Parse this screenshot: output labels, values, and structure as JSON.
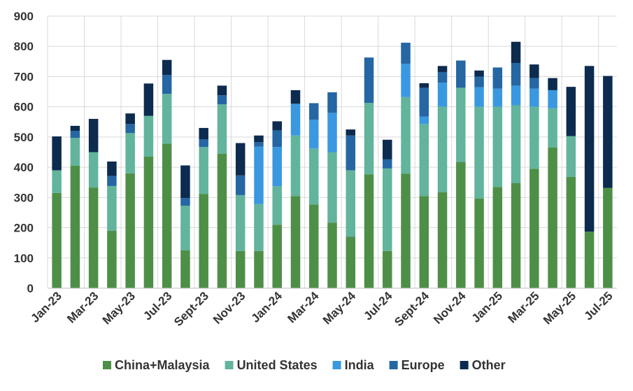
{
  "chart_data": {
    "type": "bar",
    "stacked": true,
    "title": "",
    "xlabel": "",
    "ylabel": "",
    "ylim": [
      0,
      900
    ],
    "yticks": [
      0,
      100,
      200,
      300,
      400,
      500,
      600,
      700,
      800,
      900
    ],
    "grid": true,
    "legend_position": "bottom",
    "categories": [
      "Jan-23",
      "Feb-23",
      "Mar-23",
      "Apr-23",
      "May-23",
      "Jun-23",
      "Jul-23",
      "Aug-23",
      "Sept-23",
      "Oct-23",
      "Nov-23",
      "Dec-23",
      "Jan-24",
      "Feb-24",
      "Mar-24",
      "Apr-24",
      "May-24",
      "Jun-24",
      "Jul-24",
      "Aug-24",
      "Sept-24",
      "Oct-24",
      "Nov-24",
      "Dec-24",
      "Jan-25",
      "Feb-25",
      "Mar-25",
      "Apr-25",
      "May-25",
      "Jun-25",
      "Jul-25"
    ],
    "tick_labels": [
      "Jan-23",
      "Mar-23",
      "May-23",
      "Jul-23",
      "Sept-23",
      "Nov-23",
      "Jan-24",
      "Mar-24",
      "May-24",
      "Jul-24",
      "Sept-24",
      "Nov-24",
      "Jan-25",
      "Mar-25",
      "May-25",
      "Jul-25"
    ],
    "series": [
      {
        "name": "China+Malaysia",
        "color": "#4e8f48",
        "values": [
          315,
          405,
          333,
          190,
          380,
          435,
          478,
          125,
          312,
          445,
          123,
          123,
          210,
          305,
          277,
          217,
          170,
          376,
          123,
          379,
          305,
          317,
          418,
          297,
          335,
          348,
          395,
          465,
          368,
          187,
          332
        ]
      },
      {
        "name": "United States",
        "color": "#62b49c",
        "values": [
          75,
          92,
          117,
          148,
          133,
          135,
          165,
          148,
          155,
          163,
          185,
          155,
          127,
          200,
          185,
          233,
          220,
          237,
          273,
          253,
          238,
          283,
          245,
          303,
          265,
          257,
          205,
          130,
          135,
          0,
          0
        ]
      },
      {
        "name": "India",
        "color": "#3a98e0",
        "values": [
          0,
          0,
          0,
          0,
          0,
          0,
          0,
          0,
          0,
          0,
          0,
          190,
          130,
          105,
          95,
          130,
          0,
          0,
          0,
          110,
          25,
          80,
          0,
          65,
          60,
          65,
          60,
          60,
          0,
          0,
          0
        ]
      },
      {
        "name": "Europe",
        "color": "#2566a3",
        "values": [
          0,
          23,
          0,
          33,
          30,
          0,
          62,
          25,
          25,
          30,
          65,
          15,
          55,
          0,
          55,
          68,
          115,
          150,
          30,
          70,
          95,
          35,
          90,
          35,
          70,
          75,
          35,
          0,
          0,
          0,
          0
        ]
      },
      {
        "name": "Other",
        "color": "#0c2b4e",
        "values": [
          112,
          17,
          110,
          48,
          35,
          107,
          50,
          108,
          38,
          32,
          107,
          22,
          30,
          45,
          0,
          0,
          20,
          0,
          65,
          0,
          15,
          20,
          0,
          20,
          0,
          70,
          45,
          40,
          163,
          548,
          370
        ]
      }
    ]
  }
}
